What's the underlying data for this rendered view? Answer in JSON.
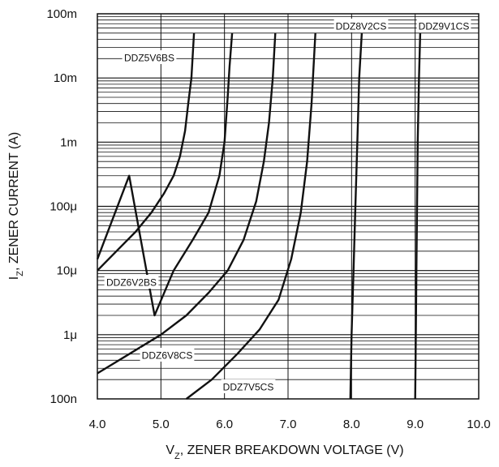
{
  "chart_data": {
    "type": "line",
    "title": "",
    "xlabel": {
      "main": "V",
      "sub": "Z",
      "rest": ", ZENER BREAKDOWN VOLTAGE (V)"
    },
    "ylabel": {
      "main": "I",
      "sub": "Z",
      "rest": ", ZENER CURRENT (A)"
    },
    "xlim": [
      4.0,
      10.0
    ],
    "ylim": [
      1e-07,
      0.1
    ],
    "yscale": "log",
    "grid": true,
    "x_ticks": [
      {
        "value": 4,
        "label": "4.0"
      },
      {
        "value": 5,
        "label": "5.0"
      },
      {
        "value": 6,
        "label": "6.0"
      },
      {
        "value": 7,
        "label": "7.0"
      },
      {
        "value": 8,
        "label": "8.0"
      },
      {
        "value": 9,
        "label": "9.0"
      },
      {
        "value": 10,
        "label": "10.0"
      }
    ],
    "y_ticks": [
      {
        "value": 1e-07,
        "label": "100n"
      },
      {
        "value": 1e-06,
        "label": "1μ"
      },
      {
        "value": 1e-05,
        "label": "10μ"
      },
      {
        "value": 0.0001,
        "label": "100μ"
      },
      {
        "value": 0.001,
        "label": "1m"
      },
      {
        "value": 0.01,
        "label": "10m"
      },
      {
        "value": 0.1,
        "label": "100m"
      }
    ],
    "series": [
      {
        "name": "DDZ5V6BS",
        "x": [
          4.0,
          4.3,
          4.6,
          4.85,
          5.05,
          5.2,
          5.3,
          5.38,
          5.43,
          5.48,
          5.52
        ],
        "y": [
          1e-05,
          2e-05,
          4e-05,
          8e-05,
          0.00016,
          0.0003,
          0.0006,
          0.0015,
          0.004,
          0.01,
          0.05
        ]
      },
      {
        "name": "DDZ6V2BS",
        "x": [
          4.0,
          4.5,
          4.9,
          5.2,
          5.5,
          5.75,
          5.92,
          6.0,
          6.05,
          6.08,
          6.12
        ],
        "y": [
          1.5e-05,
          0.0003,
          2e-06,
          1e-05,
          3e-05,
          8e-05,
          0.0003,
          0.001,
          0.005,
          0.015,
          0.05
        ]
      },
      {
        "name": "DDZ6V8CS",
        "x": [
          4.0,
          4.5,
          5.0,
          5.4,
          5.75,
          6.05,
          6.3,
          6.5,
          6.62,
          6.7,
          6.76,
          6.8
        ],
        "y": [
          2.5e-07,
          5e-07,
          1e-06,
          2e-06,
          4.5e-06,
          1e-05,
          3e-05,
          0.00012,
          0.0005,
          0.002,
          0.01,
          0.05
        ]
      },
      {
        "name": "DDZ7V5CS",
        "x": [
          5.4,
          5.8,
          6.2,
          6.55,
          6.85,
          7.05,
          7.2,
          7.3,
          7.37,
          7.43
        ],
        "y": [
          1e-07,
          2e-07,
          5e-07,
          1.2e-06,
          3.5e-06,
          1.5e-05,
          8e-05,
          0.0005,
          0.004,
          0.05
        ]
      },
      {
        "name": "DDZ8V2CS",
        "x": [
          7.98,
          8.0,
          8.03,
          8.06,
          8.09,
          8.12,
          8.16
        ],
        "y": [
          1e-07,
          1e-06,
          1e-05,
          0.0001,
          0.001,
          0.01,
          0.05
        ]
      },
      {
        "name": "DDZ9V1CS",
        "x": [
          9.0,
          9.01,
          9.02,
          9.03,
          9.04,
          9.06,
          9.08
        ],
        "y": [
          1e-07,
          1e-06,
          1e-05,
          0.0001,
          0.001,
          0.01,
          0.05
        ]
      }
    ],
    "annotations": [
      {
        "text": "DDZ5V6BS",
        "series": "DDZ5V6BS"
      },
      {
        "text": "DDZ6V2BS",
        "series": "DDZ6V2BS"
      },
      {
        "text": "DDZ6V8CS",
        "series": "DDZ6V8CS"
      },
      {
        "text": "DDZ7V5CS",
        "series": "DDZ7V5CS"
      },
      {
        "text": "DDZ8V2CS",
        "series": "DDZ8V2CS"
      },
      {
        "text": "DDZ9V1CS",
        "series": "DDZ9V1CS"
      }
    ]
  }
}
